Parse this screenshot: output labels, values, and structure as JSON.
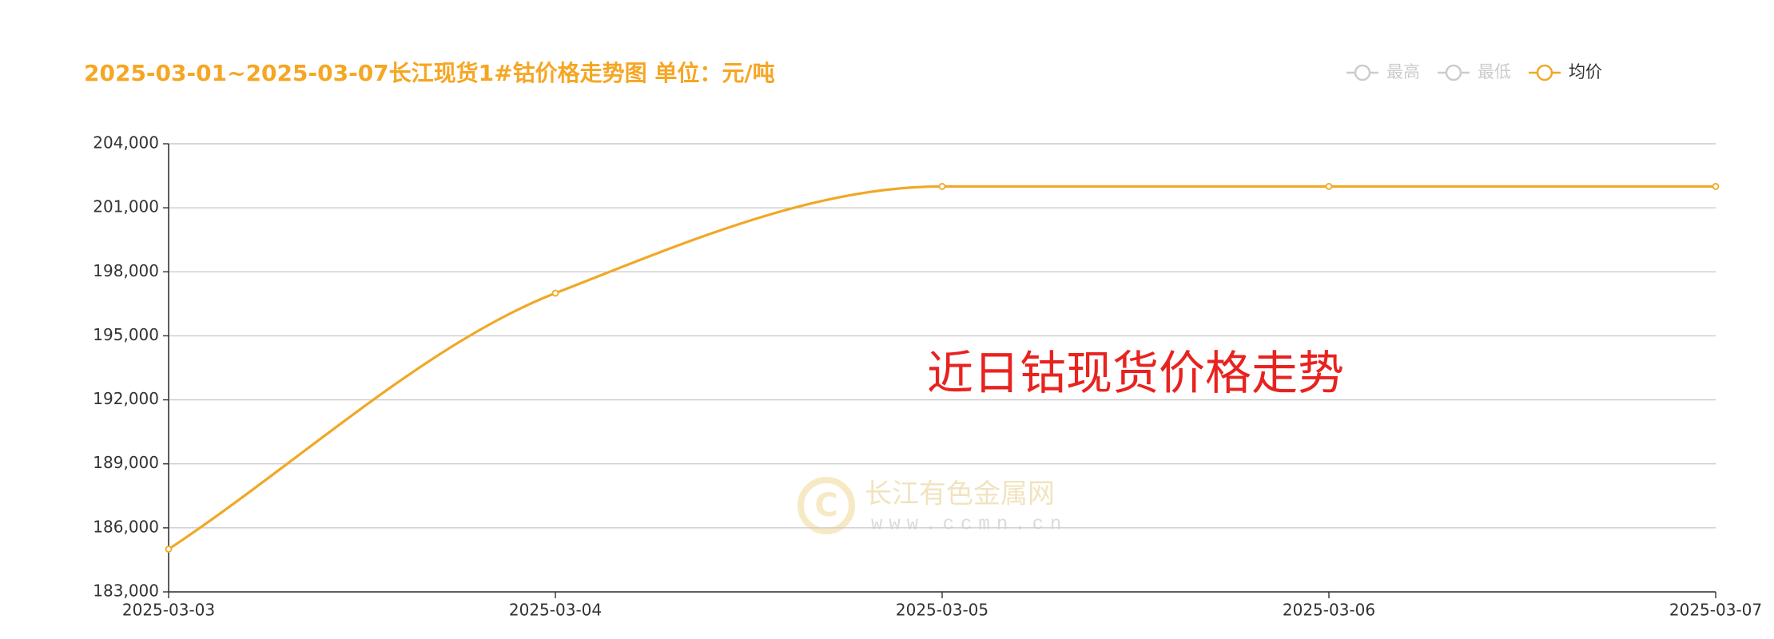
{
  "chart_data": {
    "type": "line",
    "title": "2025-03-01~2025-03-07长江现货1#钴价格走势图 单位：元/吨",
    "legend": [
      {
        "name": "最高",
        "active": false
      },
      {
        "name": "最低",
        "active": false
      },
      {
        "name": "均价",
        "active": true
      }
    ],
    "categories": [
      "2025-03-03",
      "2025-03-04",
      "2025-03-05",
      "2025-03-06",
      "2025-03-07"
    ],
    "series": [
      {
        "name": "均价",
        "color": "#f0a826",
        "values": [
          185000,
          197000,
          202000,
          202000,
          202000
        ]
      }
    ],
    "ylim": [
      183000,
      204000
    ],
    "yticks": [
      {
        "value": 183000,
        "label": "183,000"
      },
      {
        "value": 186000,
        "label": "186,000"
      },
      {
        "value": 189000,
        "label": "189,000"
      },
      {
        "value": 192000,
        "label": "192,000"
      },
      {
        "value": 195000,
        "label": "195,000"
      },
      {
        "value": 198000,
        "label": "198,000"
      },
      {
        "value": 201000,
        "label": "201,000"
      },
      {
        "value": 204000,
        "label": "204,000"
      }
    ],
    "grid": true,
    "smooth": true,
    "annotation": "近日钴现货价格走势",
    "watermark": {
      "name": "长江有色金属网",
      "url": "www.ccmn.cn"
    }
  }
}
